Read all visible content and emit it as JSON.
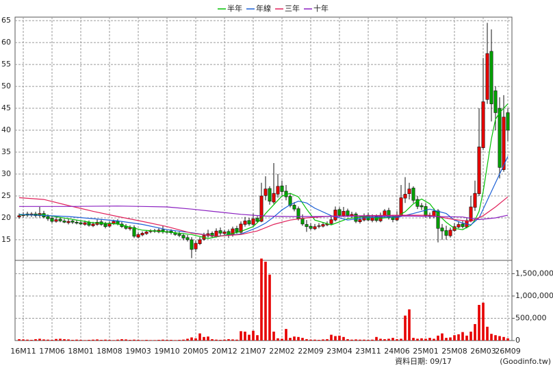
{
  "chart_data": {
    "type": "candlestick",
    "up_color": "#e60000",
    "down_color": "#00a000",
    "categories": [
      null,
      "16M11",
      null,
      null,
      null,
      null,
      null,
      null,
      "17M06",
      null,
      null,
      null,
      null,
      null,
      null,
      "18M01",
      null,
      null,
      null,
      null,
      null,
      null,
      "18M08",
      null,
      null,
      null,
      null,
      null,
      null,
      "19M03",
      null,
      null,
      null,
      null,
      null,
      null,
      "19M10",
      null,
      null,
      null,
      null,
      null,
      null,
      "20M05",
      null,
      null,
      null,
      null,
      null,
      null,
      "20M12",
      null,
      null,
      null,
      null,
      null,
      null,
      "21M07",
      null,
      null,
      null,
      null,
      null,
      null,
      "22M02",
      null,
      null,
      null,
      null,
      null,
      null,
      "22M09",
      null,
      null,
      null,
      null,
      null,
      null,
      "23M04",
      null,
      null,
      null,
      null,
      null,
      null,
      "23M11",
      null,
      null,
      null,
      null,
      null,
      null,
      "24M06",
      null,
      null,
      null,
      null,
      null,
      null,
      "25M01",
      null,
      null,
      null,
      null,
      null,
      null,
      "25M08",
      null,
      null,
      null,
      null,
      null,
      null,
      "26M03",
      null,
      null,
      null,
      null,
      null,
      "26M09"
    ],
    "open": [
      20.2,
      20.5,
      20.9,
      20.6,
      20.9,
      20.5,
      21.0,
      20.3,
      19.9,
      19.2,
      19.7,
      19.3,
      18.9,
      19.3,
      19.0,
      18.9,
      18.5,
      19.0,
      18.2,
      18.5,
      19.1,
      18.6,
      18.1,
      18.7,
      19.3,
      18.6,
      18.1,
      17.5,
      17.8,
      15.6,
      16.1,
      16.4,
      16.9,
      17.1,
      16.8,
      17.3,
      16.7,
      17.0,
      16.6,
      16.3,
      16.0,
      15.5,
      15.0,
      12.9,
      14.1,
      15.1,
      15.9,
      16.5,
      15.7,
      17.1,
      16.4,
      16.9,
      16.1,
      17.6,
      16.7,
      18.5,
      19.4,
      18.5,
      19.9,
      19.2,
      25.1,
      26.7,
      23.6,
      25.4,
      27.3,
      26.1,
      24.9,
      22.9,
      22.1,
      19.9,
      18.5,
      18.1,
      17.5,
      18.1,
      18.1,
      18.4,
      18.7,
      19.5,
      21.9,
      20.5,
      21.6,
      20.5,
      20.9,
      19.1,
      19.5,
      20.6,
      19.4,
      20.3,
      19.3,
      20.5,
      21.7,
      20.1,
      19.5,
      20.5,
      24.5,
      25.5,
      26.8,
      24.2,
      22.8,
      22.6,
      20.5,
      20.3,
      21.6,
      17.7,
      17.1,
      15.9,
      17.1,
      17.9,
      18.6,
      17.9,
      19.3,
      22.4,
      25.5,
      36.0,
      47.0,
      58.0,
      49.0,
      45.0,
      31.0,
      44.0
    ],
    "high": [
      21.0,
      21.3,
      21.4,
      21.3,
      21.4,
      22.5,
      21.6,
      20.8,
      20.3,
      20.2,
      20.1,
      19.8,
      19.8,
      19.7,
      19.5,
      19.3,
      19.4,
      19.4,
      19.1,
      19.6,
      19.6,
      19.1,
      19.2,
      19.6,
      19.7,
      19.1,
      18.6,
      18.3,
      18.3,
      16.7,
      16.9,
      17.2,
      17.4,
      17.5,
      17.6,
      18.2,
      17.3,
      17.4,
      17.0,
      16.8,
      16.5,
      16.1,
      15.6,
      14.8,
      15.6,
      16.6,
      17.3,
      16.9,
      17.6,
      17.8,
      17.3,
      17.4,
      18.0,
      18.2,
      19.2,
      20.2,
      20.0,
      21.0,
      20.4,
      28.0,
      29.5,
      27.2,
      32.5,
      30.0,
      28.5,
      27.5,
      25.6,
      23.6,
      22.6,
      20.8,
      19.5,
      18.8,
      18.6,
      18.8,
      19.0,
      19.2,
      20.2,
      22.6,
      22.4,
      22.5,
      22.1,
      21.4,
      21.3,
      20.3,
      21.0,
      21.2,
      20.8,
      20.8,
      21.2,
      22.0,
      22.3,
      20.7,
      21.5,
      27.5,
      29.3,
      28.0,
      27.2,
      25.0,
      23.4,
      23.3,
      21.2,
      22.2,
      22.0,
      18.6,
      18.2,
      17.8,
      18.8,
      19.2,
      19.3,
      20.0,
      25.0,
      28.5,
      45.0,
      56.5,
      64.5,
      63.0,
      50.0,
      47.5,
      48.0,
      45.0
    ],
    "low": [
      19.8,
      20.1,
      20.2,
      20.2,
      20.1,
      20.1,
      19.9,
      19.3,
      18.8,
      18.9,
      19.0,
      18.8,
      18.5,
      18.6,
      18.5,
      18.3,
      18.2,
      18.0,
      17.9,
      18.2,
      18.2,
      17.6,
      17.8,
      18.4,
      18.3,
      17.7,
      17.3,
      17.1,
      15.4,
      15.3,
      15.8,
      16.1,
      16.5,
      16.6,
      16.5,
      16.4,
      16.4,
      16.2,
      15.9,
      15.6,
      14.9,
      14.6,
      10.8,
      12.2,
      13.8,
      14.8,
      15.5,
      15.4,
      15.5,
      16.0,
      15.9,
      15.4,
      15.7,
      16.4,
      16.4,
      18.0,
      18.2,
      18.1,
      18.8,
      19.0,
      24.0,
      23.0,
      23.2,
      24.6,
      24.8,
      24.0,
      22.4,
      21.5,
      19.4,
      18.2,
      16.8,
      17.2,
      17.2,
      17.6,
      17.8,
      18.1,
      18.4,
      19.2,
      20.2,
      20.2,
      20.2,
      20.0,
      18.8,
      18.7,
      19.2,
      19.2,
      19.0,
      19.0,
      19.0,
      20.2,
      19.6,
      19.0,
      19.2,
      20.2,
      23.4,
      24.2,
      23.4,
      22.0,
      21.8,
      20.0,
      19.8,
      19.9,
      14.4,
      15.0,
      15.0,
      15.5,
      16.8,
      17.6,
      17.6,
      17.6,
      19.0,
      21.6,
      25.0,
      35.5,
      46.0,
      42.0,
      40.0,
      29.0,
      30.5,
      37.5
    ],
    "close": [
      20.5,
      20.8,
      20.6,
      20.9,
      20.5,
      21.0,
      20.2,
      19.8,
      19.2,
      19.6,
      19.3,
      19.0,
      19.2,
      19.0,
      18.8,
      18.6,
      18.9,
      18.3,
      18.6,
      19.0,
      18.5,
      18.0,
      18.8,
      19.2,
      18.6,
      18.0,
      17.6,
      17.8,
      15.8,
      16.2,
      16.5,
      16.8,
      17.0,
      16.9,
      17.2,
      16.8,
      16.9,
      16.6,
      16.2,
      16.0,
      15.4,
      15.0,
      12.8,
      14.2,
      15.0,
      16.0,
      16.4,
      15.8,
      17.0,
      16.5,
      16.8,
      16.0,
      17.5,
      16.8,
      18.6,
      19.3,
      18.6,
      19.8,
      19.2,
      25.0,
      26.6,
      23.8,
      25.6,
      27.2,
      26.0,
      24.8,
      22.8,
      22.0,
      19.8,
      18.6,
      18.0,
      17.6,
      18.0,
      18.2,
      18.5,
      18.6,
      19.6,
      21.8,
      20.6,
      21.5,
      20.6,
      20.8,
      19.2,
      19.6,
      20.5,
      19.5,
      20.2,
      19.4,
      20.6,
      21.6,
      20.0,
      19.6,
      20.6,
      24.6,
      25.4,
      26.6,
      24.0,
      22.6,
      22.5,
      20.5,
      20.4,
      21.5,
      17.6,
      17.0,
      16.0,
      17.2,
      18.0,
      18.5,
      18.0,
      19.4,
      22.5,
      25.6,
      36.2,
      46.5,
      57.5,
      46.0,
      44.0,
      31.5,
      43.0,
      40.0
    ],
    "ylim": [
      10.3,
      65.8
    ],
    "yticks": [
      15,
      20,
      25,
      30,
      35,
      40,
      45,
      50,
      55,
      60,
      65
    ],
    "grid": true,
    "series": [
      {
        "name": "半年",
        "color": "#00c000",
        "x": [
          0,
          6,
          12,
          18,
          24,
          30,
          36,
          42,
          46,
          50,
          54,
          57,
          59,
          60,
          62,
          64,
          66,
          68,
          70,
          72,
          76,
          80,
          84,
          88,
          92,
          94,
          96,
          98,
          100,
          102,
          104,
          106,
          108,
          110,
          111,
          112,
          113,
          114,
          115,
          116,
          117,
          118,
          119
        ],
        "values": [
          20.7,
          20.7,
          19.8,
          18.9,
          18.6,
          17.2,
          16.8,
          16.2,
          15.3,
          16.0,
          16.9,
          18.0,
          19.8,
          21.0,
          23.0,
          25.0,
          25.6,
          24.8,
          22.0,
          19.5,
          18.4,
          19.8,
          20.3,
          19.9,
          20.3,
          21.4,
          23.2,
          24.3,
          23.2,
          20.8,
          19.0,
          17.6,
          17.3,
          18.3,
          19.5,
          21.5,
          26.0,
          32.0,
          38.0,
          42.5,
          44.0,
          45.0,
          46.0
        ]
      },
      {
        "name": "年線",
        "color": "#1a5fd6",
        "x": [
          0,
          12,
          24,
          30,
          36,
          42,
          48,
          54,
          58,
          60,
          62,
          64,
          66,
          68,
          70,
          72,
          76,
          80,
          84,
          88,
          92,
          96,
          100,
          104,
          106,
          108,
          110,
          112,
          114,
          116,
          118,
          119
        ],
        "values": [
          20.8,
          20.3,
          19.3,
          18.5,
          17.3,
          16.6,
          15.8,
          16.3,
          17.8,
          18.8,
          20.2,
          21.8,
          23.0,
          23.8,
          23.4,
          22.2,
          20.5,
          19.5,
          20.0,
          20.2,
          20.1,
          21.0,
          22.0,
          21.0,
          19.5,
          18.8,
          18.4,
          20.0,
          24.0,
          28.0,
          32.0,
          34.0
        ]
      },
      {
        "name": "三年",
        "color": "#e0205a",
        "x": [
          0,
          6,
          12,
          18,
          24,
          30,
          36,
          42,
          48,
          54,
          58,
          62,
          66,
          70,
          76,
          84,
          92,
          100,
          106,
          110,
          113,
          116,
          119
        ],
        "values": [
          24.6,
          24.2,
          22.8,
          21.5,
          20.3,
          19.2,
          18.0,
          16.5,
          15.8,
          16.2,
          17.0,
          18.5,
          19.5,
          20.0,
          20.4,
          20.5,
          20.6,
          20.6,
          19.6,
          19.2,
          20.5,
          22.5,
          24.8
        ]
      },
      {
        "name": "十年",
        "color": "#8a1fc0",
        "x": [
          0,
          12,
          24,
          30,
          36,
          42,
          48,
          54,
          60,
          66,
          72,
          84,
          96,
          108,
          112,
          116,
          119
        ],
        "values": [
          22.6,
          22.6,
          22.7,
          22.6,
          22.5,
          22.0,
          21.4,
          20.8,
          20.4,
          20.3,
          20.3,
          20.4,
          20.4,
          20.2,
          19.6,
          20.0,
          20.6
        ]
      }
    ],
    "volume": {
      "color": "#e60000",
      "values": [
        30000,
        25000,
        20000,
        15000,
        30000,
        40000,
        25000,
        20000,
        15000,
        35000,
        40000,
        30000,
        25000,
        15000,
        20000,
        15000,
        10000,
        15000,
        20000,
        25000,
        15000,
        20000,
        15000,
        10000,
        20000,
        30000,
        25000,
        15000,
        20000,
        15000,
        10000,
        15000,
        10000,
        10000,
        15000,
        20000,
        15000,
        15000,
        10000,
        15000,
        20000,
        40000,
        70000,
        50000,
        160000,
        80000,
        90000,
        30000,
        20000,
        15000,
        20000,
        30000,
        25000,
        20000,
        210000,
        200000,
        130000,
        220000,
        120000,
        1840000,
        1770000,
        1480000,
        200000,
        50000,
        40000,
        260000,
        60000,
        90000,
        80000,
        60000,
        30000,
        20000,
        20000,
        15000,
        25000,
        30000,
        130000,
        100000,
        110000,
        80000,
        30000,
        20000,
        25000,
        20000,
        20000,
        15000,
        20000,
        80000,
        40000,
        30000,
        40000,
        60000,
        30000,
        40000,
        560000,
        700000,
        60000,
        40000,
        50000,
        40000,
        60000,
        40000,
        110000,
        160000,
        60000,
        70000,
        120000,
        140000,
        190000,
        110000,
        200000,
        370000,
        800000,
        850000,
        310000,
        150000,
        120000,
        100000,
        80000,
        50000
      ],
      "ylim": [
        0,
        1800000
      ],
      "yticks": [
        0,
        {
          "value": 500000,
          "label": "500,000"
        },
        {
          "value": 1000000,
          "label": "1,000,000"
        },
        {
          "value": 1500000,
          "label": "1,500,000"
        }
      ]
    },
    "date_label": "資料日期: 09/17",
    "source": "(Goodinfo.tw)"
  }
}
